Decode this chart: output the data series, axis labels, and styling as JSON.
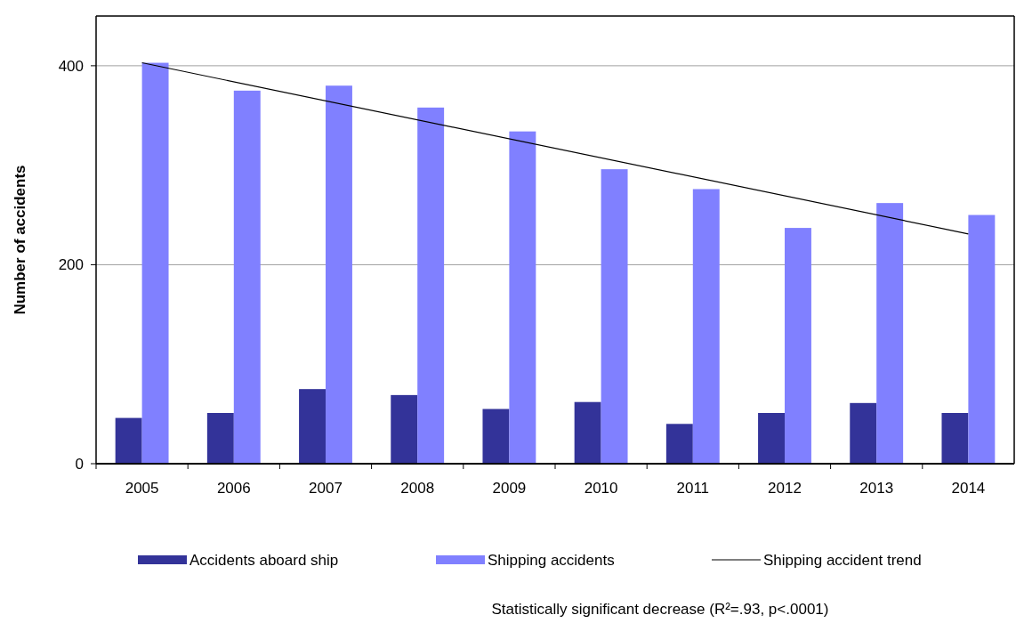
{
  "chart_data": {
    "type": "bar",
    "ylabel": "Number of accidents",
    "categories": [
      "2005",
      "2006",
      "2007",
      "2008",
      "2009",
      "2010",
      "2011",
      "2012",
      "2013",
      "2014"
    ],
    "series": [
      {
        "name": "Accidents aboard ship",
        "color": "#333399",
        "values": [
          46,
          51,
          75,
          69,
          55,
          62,
          40,
          51,
          61,
          51
        ]
      },
      {
        "name": "Shipping accidents",
        "color": "#8080ff",
        "values": [
          403,
          375,
          380,
          358,
          334,
          296,
          276,
          237,
          262,
          250
        ]
      },
      {
        "name": "Shipping accident trend",
        "type": "line",
        "color": "#000000",
        "values": [
          403,
          null,
          null,
          null,
          null,
          null,
          null,
          null,
          null,
          231
        ]
      }
    ],
    "ylim": [
      0,
      450
    ],
    "yticks": [
      0,
      200,
      400
    ],
    "grid": "y",
    "legend": "bottom",
    "annotations": [
      "Statistically significant decrease (R²=.93, p<.0001)"
    ]
  }
}
